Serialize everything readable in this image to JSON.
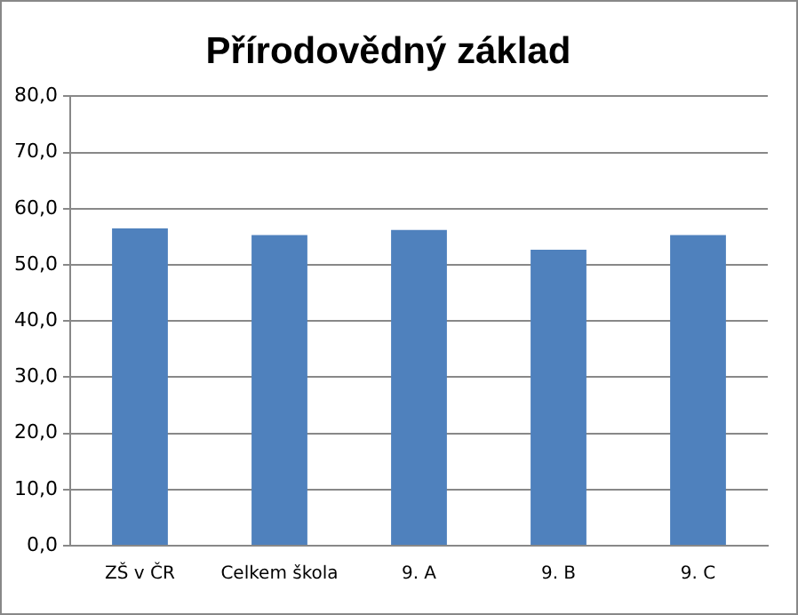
{
  "chart_data": {
    "type": "bar",
    "title": "Přírodovědný základ",
    "categories": [
      "ZŠ v ČR",
      "Celkem škola",
      "9. A",
      "9. B",
      "9. C"
    ],
    "values": [
      56.5,
      55.3,
      56.2,
      52.7,
      55.3
    ],
    "color": "#4f81bd",
    "ylim": [
      0,
      80
    ],
    "yticks": [
      {
        "value": 0,
        "label": "0,0"
      },
      {
        "value": 10,
        "label": "10,0"
      },
      {
        "value": 20,
        "label": "20,0"
      },
      {
        "value": 30,
        "label": "30,0"
      },
      {
        "value": 40,
        "label": "40,0"
      },
      {
        "value": 50,
        "label": "50,0"
      },
      {
        "value": 60,
        "label": "60,0"
      },
      {
        "value": 70,
        "label": "70,0"
      },
      {
        "value": 80,
        "label": "80,0"
      }
    ],
    "grid": "y",
    "legend": false
  }
}
